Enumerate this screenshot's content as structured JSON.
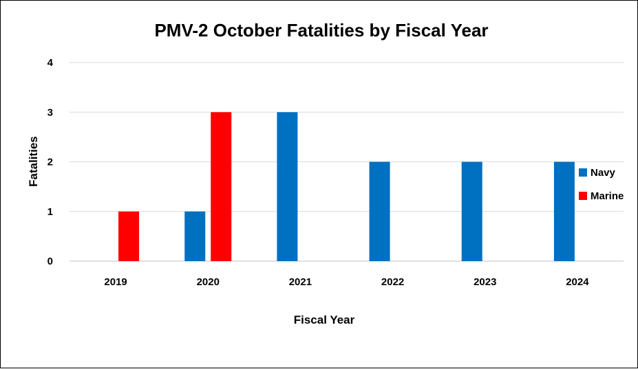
{
  "chart_data": {
    "type": "bar",
    "title": "PMV-2 October Fatalities by Fiscal Year",
    "xlabel": "Fiscal Year",
    "ylabel": "Fatalities",
    "categories": [
      "2019",
      "2020",
      "2021",
      "2022",
      "2023",
      "2024"
    ],
    "series": [
      {
        "name": "Navy",
        "color": "#0070c0",
        "values": [
          0,
          1,
          3,
          2,
          2,
          2
        ]
      },
      {
        "name": "Marine",
        "color": "#ff0000",
        "values": [
          1,
          3,
          0,
          0,
          0,
          0
        ]
      }
    ],
    "ylim": [
      0,
      4
    ],
    "yticks": [
      "0",
      "1",
      "2",
      "3",
      "4"
    ],
    "grid": true,
    "legend_position": "right"
  }
}
